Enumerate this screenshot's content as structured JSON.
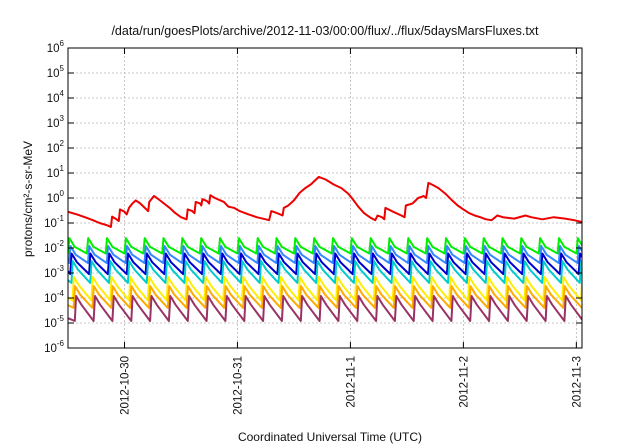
{
  "chart_data": {
    "type": "line",
    "title": "/data/run/goesPlots/archive/2012-11-03/00:00/flux/../flux/5daysMarsFluxes.txt",
    "xlabel": "Coordinated Universal Time (UTC)",
    "ylabel": "protons/cm²-s-sr-MeV",
    "yscale": "log",
    "ylim": [
      1e-06,
      1000000.0
    ],
    "xlim_days": [
      -0.5,
      4.05
    ],
    "yticks": [
      {
        "base": "10",
        "exp": "-6"
      },
      {
        "base": "10",
        "exp": "-5"
      },
      {
        "base": "10",
        "exp": "-4"
      },
      {
        "base": "10",
        "exp": "-3"
      },
      {
        "base": "10",
        "exp": "-2"
      },
      {
        "base": "10",
        "exp": "-1"
      },
      {
        "base": "10",
        "exp": "0"
      },
      {
        "base": "10",
        "exp": "1"
      },
      {
        "base": "10",
        "exp": "2"
      },
      {
        "base": "10",
        "exp": "3"
      },
      {
        "base": "10",
        "exp": "4"
      },
      {
        "base": "10",
        "exp": "5"
      },
      {
        "base": "10",
        "exp": "6"
      }
    ],
    "xticks": [
      "2012-10-30",
      "2012-10-31",
      "2012-11-1",
      "2012-11-2",
      "2012-11-3"
    ],
    "xtick_days": [
      0,
      1,
      2,
      3,
      4
    ],
    "grid": true,
    "sawtooth_period_days": 0.1667,
    "series": [
      {
        "color": "#ee0000",
        "points": [
          [
            -0.5,
            0.28
          ],
          [
            -0.42,
            0.22
          ],
          [
            -0.35,
            0.17
          ],
          [
            -0.28,
            0.13
          ],
          [
            -0.22,
            0.1
          ],
          [
            -0.15,
            0.08
          ],
          [
            -0.12,
            0.07
          ],
          [
            -0.11,
            0.18
          ],
          [
            -0.08,
            0.15
          ],
          [
            -0.05,
            0.12
          ],
          [
            -0.04,
            0.35
          ],
          [
            0.0,
            0.28
          ],
          [
            0.02,
            0.22
          ],
          [
            0.04,
            0.4
          ],
          [
            0.07,
            0.6
          ],
          [
            0.1,
            0.8
          ],
          [
            0.14,
            0.6
          ],
          [
            0.18,
            0.4
          ],
          [
            0.21,
            0.3
          ],
          [
            0.22,
            0.7
          ],
          [
            0.26,
            1.2
          ],
          [
            0.3,
            0.9
          ],
          [
            0.35,
            0.6
          ],
          [
            0.4,
            0.4
          ],
          [
            0.45,
            0.25
          ],
          [
            0.5,
            0.17
          ],
          [
            0.55,
            0.14
          ],
          [
            0.56,
            0.35
          ],
          [
            0.6,
            0.3
          ],
          [
            0.62,
            0.25
          ],
          [
            0.63,
            0.7
          ],
          [
            0.67,
            0.6
          ],
          [
            0.68,
            0.5
          ],
          [
            0.69,
            0.9
          ],
          [
            0.73,
            0.75
          ],
          [
            0.75,
            0.6
          ],
          [
            0.76,
            1.3
          ],
          [
            0.8,
            1.0
          ],
          [
            0.85,
            0.8
          ],
          [
            0.88,
            0.7
          ],
          [
            0.92,
            0.45
          ],
          [
            0.97,
            0.4
          ],
          [
            1.02,
            0.3
          ],
          [
            1.1,
            0.22
          ],
          [
            1.17,
            0.17
          ],
          [
            1.25,
            0.14
          ],
          [
            1.28,
            0.13
          ],
          [
            1.3,
            0.3
          ],
          [
            1.35,
            0.25
          ],
          [
            1.4,
            0.2
          ],
          [
            1.41,
            0.4
          ],
          [
            1.45,
            0.5
          ],
          [
            1.5,
            0.8
          ],
          [
            1.55,
            1.6
          ],
          [
            1.6,
            2.5
          ],
          [
            1.65,
            3.5
          ],
          [
            1.72,
            7.0
          ],
          [
            1.78,
            5.5
          ],
          [
            1.85,
            3.5
          ],
          [
            1.92,
            2.5
          ],
          [
            1.98,
            1.5
          ],
          [
            2.02,
            0.9
          ],
          [
            2.07,
            0.45
          ],
          [
            2.12,
            0.25
          ],
          [
            2.18,
            0.16
          ],
          [
            2.22,
            0.13
          ],
          [
            2.24,
            0.2
          ],
          [
            2.28,
            0.17
          ],
          [
            2.3,
            0.14
          ],
          [
            2.31,
            0.4
          ],
          [
            2.38,
            0.28
          ],
          [
            2.45,
            0.2
          ],
          [
            2.48,
            0.17
          ],
          [
            2.49,
            0.5
          ],
          [
            2.55,
            0.6
          ],
          [
            2.6,
            1.0
          ],
          [
            2.65,
            1.2
          ],
          [
            2.67,
            1.0
          ],
          [
            2.69,
            4.0
          ],
          [
            2.73,
            3.3
          ],
          [
            2.78,
            2.5
          ],
          [
            2.84,
            1.5
          ],
          [
            2.9,
            0.8
          ],
          [
            2.95,
            0.5
          ],
          [
            3.0,
            0.35
          ],
          [
            3.05,
            0.25
          ],
          [
            3.1,
            0.2
          ],
          [
            3.15,
            0.17
          ],
          [
            3.2,
            0.14
          ],
          [
            3.25,
            0.13
          ],
          [
            3.3,
            0.2
          ],
          [
            3.35,
            0.17
          ],
          [
            3.45,
            0.15
          ],
          [
            3.55,
            0.2
          ],
          [
            3.6,
            0.17
          ],
          [
            3.7,
            0.14
          ],
          [
            3.8,
            0.17
          ],
          [
            3.9,
            0.15
          ],
          [
            3.98,
            0.13
          ],
          [
            4.05,
            0.11
          ]
        ]
      },
      {
        "color": "#00ee00",
        "low": 0.006,
        "high": 0.025,
        "phase": 0.0
      },
      {
        "color": "#3388ff",
        "low": 0.0025,
        "high": 0.012,
        "phase": 0.01
      },
      {
        "color": "#0000cc",
        "low": 0.0009,
        "high": 0.006,
        "phase": 0.02
      },
      {
        "color": "#00cccc",
        "low": 0.0004,
        "high": 0.003,
        "phase": 0.03
      },
      {
        "color": "#ffee00",
        "low": 8e-05,
        "high": 0.0007,
        "phase": 0.04
      },
      {
        "color": "#ffaa00",
        "low": 4e-05,
        "high": 0.0003,
        "phase": 0.05
      },
      {
        "color": "#993366",
        "low": 1.2e-05,
        "high": 0.00012,
        "phase": 0.06
      }
    ]
  }
}
